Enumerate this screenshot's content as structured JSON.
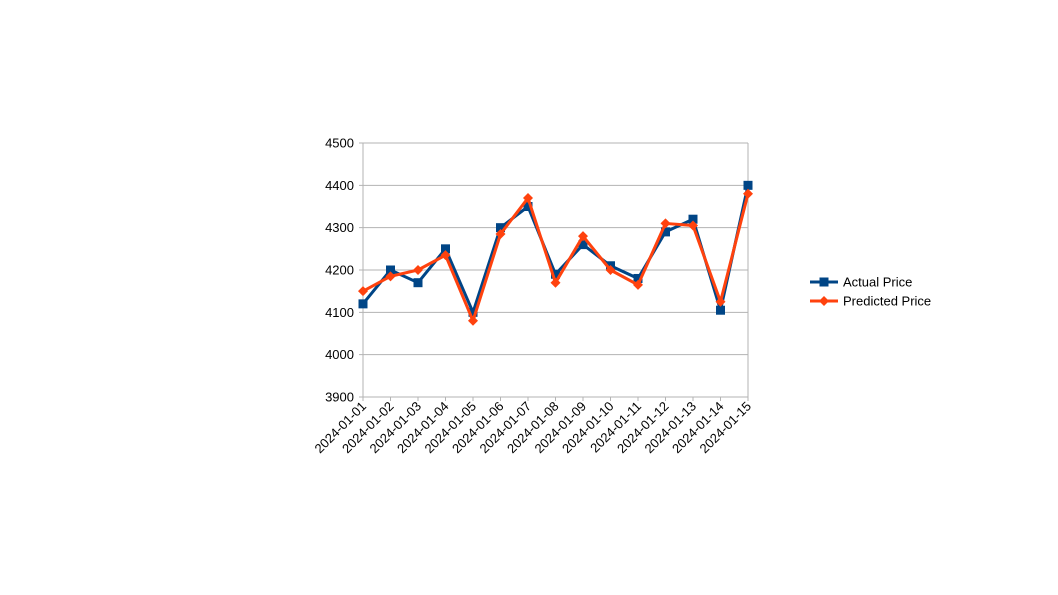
{
  "chart_data": {
    "type": "line",
    "title": "",
    "xlabel": "",
    "ylabel": "",
    "ylim": [
      3900,
      4500
    ],
    "yticks": [
      3900,
      4000,
      4100,
      4200,
      4300,
      4400,
      4500
    ],
    "grid": "horizontal",
    "legend_position": "right",
    "categories": [
      "2024-01-01",
      "2024-01-02",
      "2024-01-03",
      "2024-01-04",
      "2024-01-05",
      "2024-01-06",
      "2024-01-07",
      "2024-01-08",
      "2024-01-09",
      "2024-01-10",
      "2024-01-11",
      "2024-01-12",
      "2024-01-13",
      "2024-01-14",
      "2024-01-15"
    ],
    "series": [
      {
        "name": "Actual Price",
        "color": "#004586",
        "marker": "square",
        "values": [
          4120,
          4200,
          4170,
          4250,
          4100,
          4300,
          4350,
          4190,
          4260,
          4210,
          4180,
          4290,
          4320,
          4105,
          4400
        ]
      },
      {
        "name": "Predicted Price",
        "color": "#ff420e",
        "marker": "diamond",
        "values": [
          4150,
          4185,
          4200,
          4235,
          4080,
          4285,
          4370,
          4170,
          4280,
          4200,
          4165,
          4310,
          4305,
          4125,
          4380
        ]
      }
    ]
  }
}
